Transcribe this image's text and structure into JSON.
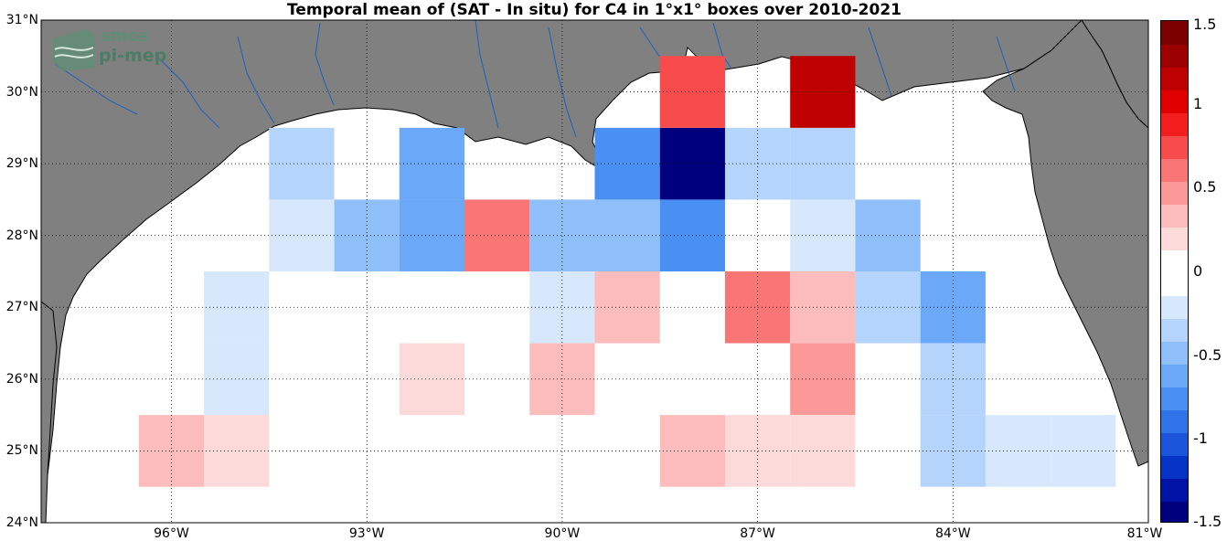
{
  "title": "Temporal mean of (SAT - In situ) for C4 in 1°x1° boxes over 2010-2021",
  "logo": {
    "line1": "smos",
    "line2": "pi-mep"
  },
  "map": {
    "lon_range": [
      -98,
      -81
    ],
    "lat_range": [
      24,
      31
    ],
    "land_color": "#808080",
    "ocean_color": "#ffffff",
    "river_color": "#1f5fbf",
    "lat_ticks": [
      {
        "value": 31,
        "label": "31°N"
      },
      {
        "value": 30,
        "label": "30°N"
      },
      {
        "value": 29,
        "label": "29°N"
      },
      {
        "value": 28,
        "label": "28°N"
      },
      {
        "value": 27,
        "label": "27°N"
      },
      {
        "value": 26,
        "label": "26°N"
      },
      {
        "value": 25,
        "label": "25°N"
      },
      {
        "value": 24,
        "label": "24°N"
      }
    ],
    "lon_ticks": [
      {
        "value": -96,
        "label": "96°W"
      },
      {
        "value": -93,
        "label": "93°W"
      },
      {
        "value": -90,
        "label": "90°W"
      },
      {
        "value": -87,
        "label": "87°W"
      },
      {
        "value": -84,
        "label": "84°W"
      },
      {
        "value": -81,
        "label": "81°W"
      }
    ]
  },
  "colorbar": {
    "range": [
      -1.5,
      1.5
    ],
    "colors": [
      "#00007f",
      "#0013a6",
      "#0533c6",
      "#1b55db",
      "#2f73e8",
      "#4a8ff2",
      "#6ba8f7",
      "#8fbff9",
      "#b4d4fb",
      "#d7e8fd",
      "#ffffff",
      "#ffffff",
      "#fddada",
      "#fcbcbc",
      "#fb9999",
      "#fa7575",
      "#f84b4b",
      "#f21e1e",
      "#e00000",
      "#bf0000",
      "#9c0000",
      "#7a0000"
    ],
    "ticks": [
      {
        "value": 1.5,
        "label": "1.5"
      },
      {
        "value": 1,
        "label": "1"
      },
      {
        "value": 0.5,
        "label": "0.5"
      },
      {
        "value": 0,
        "label": "0"
      },
      {
        "value": -0.5,
        "label": "-0.5"
      },
      {
        "value": -1,
        "label": "-1"
      },
      {
        "value": -1.5,
        "label": "-1.5"
      }
    ]
  },
  "chart_data": {
    "type": "heatmap",
    "title": "Temporal mean of (SAT - In situ) for C4 in 1°x1° boxes over 2010-2021",
    "xlabel": "",
    "ylabel": "",
    "xlim": [
      -98,
      -81
    ],
    "ylim": [
      24,
      31
    ],
    "clim": [
      -1.5,
      1.5
    ],
    "cells": [
      {
        "lon": -94,
        "lat": 29,
        "value": -0.3
      },
      {
        "lon": -92,
        "lat": 29,
        "value": -0.6
      },
      {
        "lon": -89,
        "lat": 29,
        "value": -0.75
      },
      {
        "lon": -88,
        "lat": 29,
        "value": -1.5
      },
      {
        "lon": -87,
        "lat": 29,
        "value": -0.3
      },
      {
        "lon": -86,
        "lat": 29,
        "value": -0.3
      },
      {
        "lon": -88,
        "lat": 30,
        "value": 0.75
      },
      {
        "lon": -86,
        "lat": 30,
        "value": 1.2
      },
      {
        "lon": -94,
        "lat": 28,
        "value": -0.15
      },
      {
        "lon": -93,
        "lat": 28,
        "value": -0.45
      },
      {
        "lon": -92,
        "lat": 28,
        "value": -0.6
      },
      {
        "lon": -91,
        "lat": 28,
        "value": 0.6
      },
      {
        "lon": -90,
        "lat": 28,
        "value": -0.45
      },
      {
        "lon": -89,
        "lat": 28,
        "value": -0.45
      },
      {
        "lon": -88,
        "lat": 28,
        "value": -0.75
      },
      {
        "lon": -86,
        "lat": 28,
        "value": -0.15
      },
      {
        "lon": -85,
        "lat": 28,
        "value": -0.45
      },
      {
        "lon": -95,
        "lat": 27,
        "value": -0.15
      },
      {
        "lon": -90,
        "lat": 27,
        "value": -0.15
      },
      {
        "lon": -89,
        "lat": 27,
        "value": 0.3
      },
      {
        "lon": -87,
        "lat": 27,
        "value": 0.6
      },
      {
        "lon": -86,
        "lat": 27,
        "value": 0.3
      },
      {
        "lon": -85,
        "lat": 27,
        "value": -0.3
      },
      {
        "lon": -84,
        "lat": 27,
        "value": -0.6
      },
      {
        "lon": -95,
        "lat": 26,
        "value": -0.15
      },
      {
        "lon": -92,
        "lat": 26,
        "value": 0.15
      },
      {
        "lon": -90,
        "lat": 26,
        "value": 0.3
      },
      {
        "lon": -86,
        "lat": 26,
        "value": 0.45
      },
      {
        "lon": -84,
        "lat": 26,
        "value": -0.3
      },
      {
        "lon": -96,
        "lat": 25,
        "value": 0.3
      },
      {
        "lon": -95,
        "lat": 25,
        "value": 0.15
      },
      {
        "lon": -88,
        "lat": 25,
        "value": 0.3
      },
      {
        "lon": -87,
        "lat": 25,
        "value": 0.15
      },
      {
        "lon": -86,
        "lat": 25,
        "value": 0.15
      },
      {
        "lon": -84,
        "lat": 25,
        "value": -0.3
      },
      {
        "lon": -83,
        "lat": 25,
        "value": -0.15
      },
      {
        "lon": -82,
        "lat": 25,
        "value": -0.15
      }
    ]
  }
}
